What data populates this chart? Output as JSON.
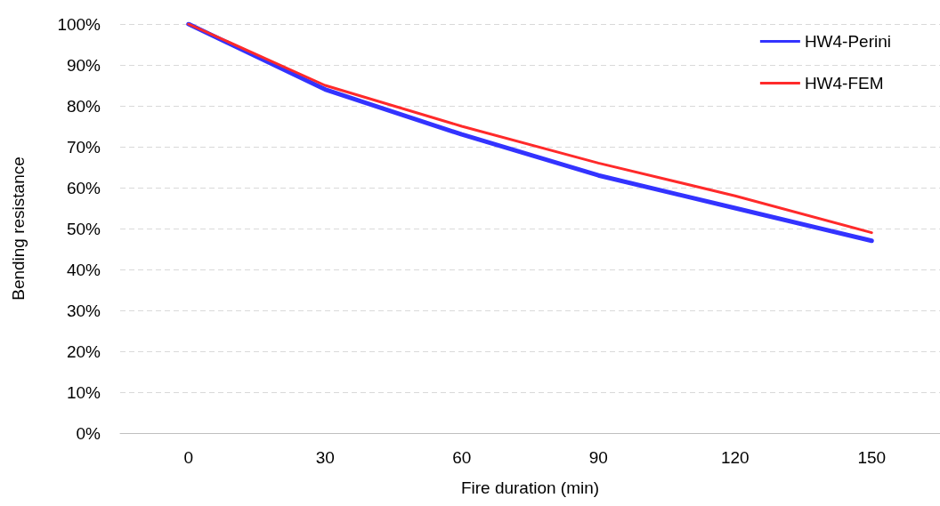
{
  "chart_data": {
    "type": "line",
    "xlabel": "Fire duration (min)",
    "ylabel": "Bending resistance",
    "categories": [
      "0",
      "30",
      "60",
      "90",
      "120",
      "150"
    ],
    "series": [
      {
        "name": "HW4-Perini",
        "color": "#3333ff",
        "values": [
          100,
          84,
          73,
          63,
          55,
          47
        ]
      },
      {
        "name": "HW4-FEM",
        "color": "#ff2a2a",
        "values": [
          100,
          85,
          75,
          66,
          58,
          49
        ]
      }
    ],
    "ylim": [
      0,
      100
    ],
    "yticks": [
      {
        "value": 0,
        "label": "0%"
      },
      {
        "value": 10,
        "label": "10%"
      },
      {
        "value": 20,
        "label": "20%"
      },
      {
        "value": 30,
        "label": "30%"
      },
      {
        "value": 40,
        "label": "40%"
      },
      {
        "value": 50,
        "label": "50%"
      },
      {
        "value": 60,
        "label": "60%"
      },
      {
        "value": 70,
        "label": "70%"
      },
      {
        "value": 80,
        "label": "80%"
      },
      {
        "value": 90,
        "label": "90%"
      },
      {
        "value": 100,
        "label": "100%"
      }
    ],
    "grid": "y",
    "legend": "top right",
    "marker": "none",
    "line_style": "solid"
  }
}
